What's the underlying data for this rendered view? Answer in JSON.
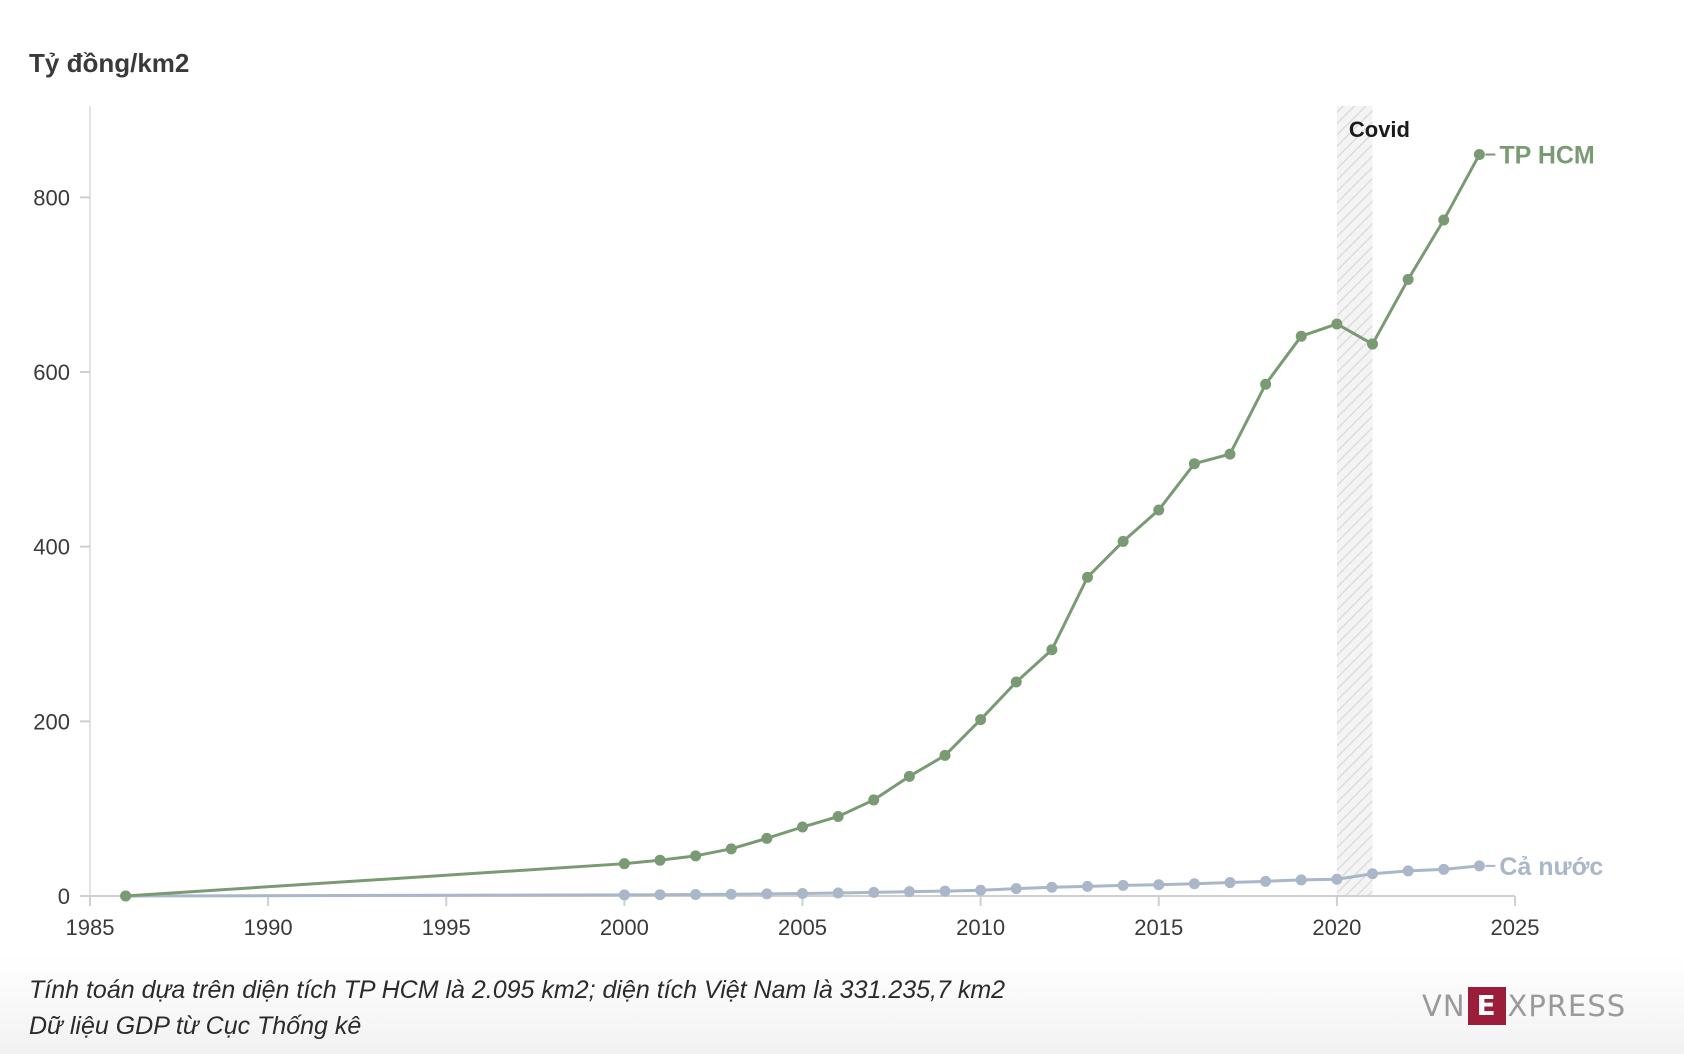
{
  "unit_label": "Tỷ đồng/km2",
  "footnotes": [
    "Tính toán dựa trên diện tích TP HCM là 2.095 km2; diện tích Việt Nam là 331.235,7 km2",
    "Dữ liệu GDP từ Cục Thống kê"
  ],
  "logo": {
    "pre": "VN",
    "box": "E",
    "post": "XPRESS"
  },
  "chart_data": {
    "type": "line",
    "title": "",
    "xlabel": "",
    "ylabel": "Tỷ đồng/km2",
    "xlim": [
      1985,
      2025
    ],
    "ylim": [
      0,
      900
    ],
    "xticks": [
      1985,
      1990,
      1995,
      2000,
      2005,
      2010,
      2015,
      2020,
      2025
    ],
    "yticks": [
      0,
      200,
      400,
      600,
      800
    ],
    "grid": false,
    "annotations": [
      {
        "type": "shaded-band",
        "label": "Covid",
        "x_start": 2020,
        "x_end": 2021
      }
    ],
    "series": [
      {
        "name": "TP HCM",
        "color": "#7a9a74",
        "x": [
          1986,
          2000,
          2001,
          2002,
          2003,
          2004,
          2005,
          2006,
          2007,
          2008,
          2009,
          2010,
          2011,
          2012,
          2013,
          2014,
          2015,
          2016,
          2017,
          2018,
          2019,
          2020,
          2021,
          2022,
          2023,
          2024
        ],
        "y": [
          0,
          37,
          41,
          46,
          54,
          66,
          79,
          91,
          110,
          137,
          161,
          202,
          245,
          282,
          365,
          406,
          442,
          495,
          506,
          586,
          641,
          655,
          632,
          706,
          774,
          849
        ]
      },
      {
        "name": "Cả nước",
        "color": "#a9b7c8",
        "x": [
          1986,
          2000,
          2001,
          2002,
          2003,
          2004,
          2005,
          2006,
          2007,
          2008,
          2009,
          2010,
          2011,
          2012,
          2013,
          2014,
          2015,
          2016,
          2017,
          2018,
          2019,
          2020,
          2021,
          2022,
          2023,
          2024
        ],
        "y": [
          0,
          1.3,
          1.5,
          1.7,
          2,
          2.4,
          2.9,
          3.4,
          4.1,
          5,
          5.6,
          6.6,
          8.4,
          10,
          11,
          12.2,
          12.9,
          14,
          15.4,
          16.8,
          18.4,
          19.2,
          25.5,
          28.7,
          30.5,
          34.5
        ]
      }
    ]
  }
}
